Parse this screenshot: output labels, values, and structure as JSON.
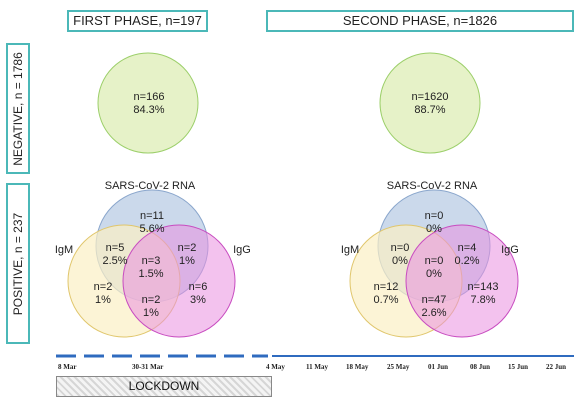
{
  "phases": {
    "first": "FIRST PHASE, n=197",
    "second": "SECOND PHASE, n=1826"
  },
  "rows": {
    "negative": "NEGATIVE, n = 1786",
    "positive": "POSITIVE, n = 237"
  },
  "first": {
    "negative": {
      "n": "n=166",
      "pct": "84.3%"
    },
    "rna_label": "SARS-CoV-2 RNA",
    "igm_label": "IgM",
    "igg_label": "IgG",
    "rna_only": {
      "n": "n=11",
      "pct": "5.6%"
    },
    "rna_igm": {
      "n": "n=5",
      "pct": "2.5%"
    },
    "rna_igg": {
      "n": "n=2",
      "pct": "1%"
    },
    "all": {
      "n": "n=3",
      "pct": "1.5%"
    },
    "igm_only": {
      "n": "n=2",
      "pct": "1%"
    },
    "igg_only": {
      "n": "n=6",
      "pct": "3%"
    },
    "igm_igg": {
      "n": "n=2",
      "pct": "1%"
    }
  },
  "second": {
    "negative": {
      "n": "n=1620",
      "pct": "88.7%"
    },
    "rna_label": "SARS-CoV-2 RNA",
    "igm_label": "IgM",
    "igg_label": "IgG",
    "rna_only": {
      "n": "n=0",
      "pct": "0%"
    },
    "rna_igm": {
      "n": "n=0",
      "pct": "0%"
    },
    "rna_igg": {
      "n": "n=4",
      "pct": "0.2%"
    },
    "all": {
      "n": "n=0",
      "pct": "0%"
    },
    "igm_only": {
      "n": "n=12",
      "pct": "0.7%"
    },
    "igg_only": {
      "n": "n=143",
      "pct": "7.8%"
    },
    "igm_igg": {
      "n": "n=47",
      "pct": "2.6%"
    }
  },
  "timeline": {
    "ticks": [
      "8 Mar",
      "30-31 Mar",
      "4 May",
      "11 May",
      "18 May",
      "25 May",
      "01 Jun",
      "08 Jun",
      "15 Jun",
      "22 Jun"
    ]
  },
  "lockdown": "LOCKDOWN",
  "colors": {
    "border": "#4bb8b8",
    "negative": "#e6f2c8",
    "rna": "#b9cce4",
    "igm": "#fbefc4",
    "igg": "#e98fe0",
    "timeline": "#2f6bbf"
  }
}
